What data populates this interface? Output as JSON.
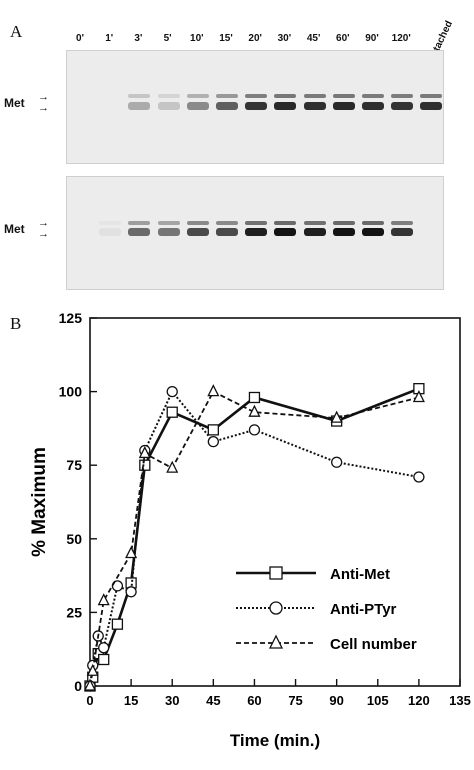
{
  "panel_a": {
    "letter": "A",
    "lanes": [
      "0'",
      "1'",
      "3'",
      "5'",
      "10'",
      "15'",
      "20'",
      "30'",
      "45'",
      "60'",
      "90'",
      "120'"
    ],
    "detached_label": "Detached",
    "top_blot": {
      "met_label": "Met",
      "intensity": [
        0,
        0,
        0.3,
        0.18,
        0.45,
        0.65,
        0.85,
        0.9,
        0.88,
        0.9,
        0.88,
        0.86,
        0.88
      ]
    },
    "bottom_blot": {
      "met_label": "Met",
      "intensity": [
        0,
        0.05,
        0.6,
        0.55,
        0.75,
        0.75,
        0.95,
        1.0,
        0.95,
        1.0,
        1.0,
        0.85,
        0
      ]
    }
  },
  "panel_b": {
    "letter": "B"
  },
  "chart_data": {
    "type": "line",
    "ylabel": "% Maximum",
    "xlabel": "Time  (min.)",
    "xlim": [
      0,
      135
    ],
    "ylim": [
      0,
      125
    ],
    "xticks": [
      "0",
      "15",
      "30",
      "45",
      "60",
      "75",
      "90",
      "105",
      "120",
      "135"
    ],
    "yticks": [
      "0",
      "25",
      "50",
      "75",
      "100",
      "125"
    ],
    "legend_position": "bottom-right",
    "series": [
      {
        "name": "Anti-Met",
        "marker": "square",
        "line": "solid",
        "x": [
          0,
          1,
          3,
          5,
          10,
          15,
          20,
          30,
          45,
          60,
          90,
          120
        ],
        "y": [
          0,
          3,
          11,
          9,
          21,
          35,
          75,
          93,
          87,
          98,
          90,
          101
        ]
      },
      {
        "name": "Anti-PTyr",
        "marker": "circle",
        "line": "dotted",
        "x": [
          0,
          1,
          3,
          5,
          10,
          15,
          20,
          30,
          45,
          60,
          90,
          120
        ],
        "y": [
          0,
          7,
          17,
          13,
          34,
          32,
          80,
          100,
          83,
          87,
          76,
          71
        ]
      },
      {
        "name": "Cell number",
        "marker": "triangle",
        "line": "dashed",
        "x": [
          0,
          1,
          5,
          15,
          20,
          30,
          45,
          60,
          90,
          120
        ],
        "y": [
          0,
          5,
          29,
          45,
          79,
          74,
          100,
          93,
          91,
          98
        ]
      }
    ]
  }
}
